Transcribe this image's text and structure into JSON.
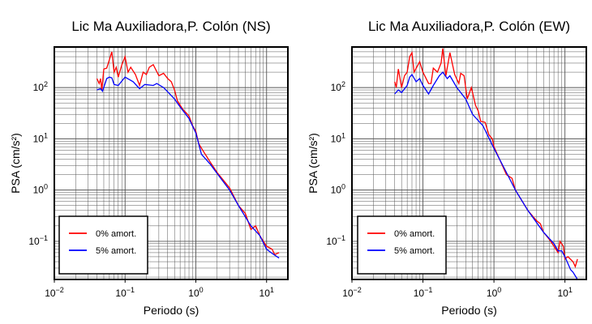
{
  "chart_data": [
    {
      "type": "line",
      "title": "Lic Ma Auxiliadora,P. Colón (NS)",
      "xlabel": "Periodo (s)",
      "ylabel": "PSA (cm/s²)",
      "xscale": "log",
      "yscale": "log",
      "xlim": [
        0.01,
        20
      ],
      "ylim": [
        0.018,
        620
      ],
      "grid": true,
      "legend_position": "bottom-left",
      "xticks": [
        {
          "base": "10",
          "exp": "−2",
          "v": 0.01
        },
        {
          "base": "10",
          "exp": "−1",
          "v": 0.1
        },
        {
          "base": "10",
          "exp": "0",
          "v": 1
        },
        {
          "base": "10",
          "exp": "1",
          "v": 10
        }
      ],
      "yticks": [
        {
          "base": "10",
          "exp": "−1",
          "v": 0.1
        },
        {
          "base": "10",
          "exp": "0",
          "v": 1
        },
        {
          "base": "10",
          "exp": "1",
          "v": 10
        },
        {
          "base": "10",
          "exp": "2",
          "v": 100
        }
      ],
      "series": [
        {
          "name": "0% amort.",
          "color": "#ff0000",
          "x": [
            0.04,
            0.043,
            0.045,
            0.047,
            0.05,
            0.055,
            0.06,
            0.065,
            0.07,
            0.075,
            0.08,
            0.09,
            0.1,
            0.11,
            0.12,
            0.14,
            0.16,
            0.18,
            0.2,
            0.22,
            0.25,
            0.3,
            0.35,
            0.4,
            0.45,
            0.5,
            0.55,
            0.65,
            0.8,
            0.9,
            1.0,
            1.1,
            1.3,
            1.6,
            2,
            3,
            4,
            5,
            6,
            7,
            8,
            9,
            10,
            12,
            13,
            15
          ],
          "y": [
            150,
            120,
            150,
            90,
            230,
            240,
            350,
            500,
            200,
            250,
            160,
            280,
            400,
            200,
            250,
            180,
            110,
            200,
            180,
            250,
            280,
            170,
            190,
            150,
            130,
            90,
            55,
            38,
            28,
            18,
            14,
            8,
            5.5,
            3.5,
            2.2,
            1.1,
            0.5,
            0.35,
            0.17,
            0.2,
            0.13,
            0.1,
            0.08,
            0.07,
            0.055,
            0.06
          ]
        },
        {
          "name": "5% amort.",
          "color": "#0000ff",
          "x": [
            0.04,
            0.045,
            0.048,
            0.055,
            0.06,
            0.065,
            0.07,
            0.08,
            0.1,
            0.13,
            0.16,
            0.19,
            0.25,
            0.28,
            0.35,
            0.5,
            0.6,
            0.8,
            1.0,
            1.2,
            1.6,
            2,
            3,
            4,
            5,
            6,
            8,
            10,
            12,
            15
          ],
          "y": [
            90,
            95,
            85,
            150,
            160,
            155,
            115,
            110,
            160,
            130,
            95,
            115,
            110,
            120,
            100,
            60,
            42,
            25,
            13,
            5,
            3.2,
            2.1,
            1.0,
            0.5,
            0.3,
            0.2,
            0.13,
            0.07,
            0.058,
            0.047
          ]
        }
      ]
    },
    {
      "type": "line",
      "title": "Lic Ma Auxiliadora,P. Colón (EW)",
      "xlabel": "Periodo (s)",
      "ylabel": "PSA (cm/s²)",
      "xscale": "log",
      "yscale": "log",
      "xlim": [
        0.01,
        20
      ],
      "ylim": [
        0.018,
        620
      ],
      "grid": true,
      "legend_position": "bottom-left",
      "xticks": [
        {
          "base": "10",
          "exp": "−2",
          "v": 0.01
        },
        {
          "base": "10",
          "exp": "−1",
          "v": 0.1
        },
        {
          "base": "10",
          "exp": "0",
          "v": 1
        },
        {
          "base": "10",
          "exp": "1",
          "v": 10
        }
      ],
      "yticks": [
        {
          "base": "10",
          "exp": "−1",
          "v": 0.1
        },
        {
          "base": "10",
          "exp": "0",
          "v": 1
        },
        {
          "base": "10",
          "exp": "1",
          "v": 10
        },
        {
          "base": "10",
          "exp": "2",
          "v": 100
        }
      ],
      "series": [
        {
          "name": "0% amort.",
          "color": "#ff0000",
          "x": [
            0.04,
            0.042,
            0.045,
            0.05,
            0.055,
            0.06,
            0.065,
            0.07,
            0.075,
            0.09,
            0.1,
            0.12,
            0.13,
            0.14,
            0.16,
            0.18,
            0.19,
            0.21,
            0.24,
            0.28,
            0.32,
            0.34,
            0.38,
            0.42,
            0.48,
            0.55,
            0.6,
            0.65,
            0.75,
            0.85,
            0.95,
            1.0,
            1.5,
            1.8,
            2,
            3,
            4,
            4.5,
            5,
            6,
            7,
            8,
            8.5,
            9.5,
            10,
            11,
            13,
            14,
            15
          ],
          "y": [
            130,
            100,
            230,
            100,
            170,
            200,
            400,
            480,
            200,
            320,
            200,
            120,
            120,
            240,
            200,
            300,
            580,
            170,
            480,
            180,
            120,
            190,
            170,
            60,
            100,
            45,
            35,
            22,
            21,
            12,
            10,
            7,
            2.0,
            1.7,
            1.0,
            0.4,
            0.25,
            0.22,
            0.15,
            0.11,
            0.08,
            0.06,
            0.1,
            0.08,
            0.045,
            0.05,
            0.04,
            0.032,
            0.045
          ]
        },
        {
          "name": "5% amort.",
          "color": "#0000ff",
          "x": [
            0.04,
            0.045,
            0.05,
            0.06,
            0.065,
            0.07,
            0.08,
            0.09,
            0.1,
            0.12,
            0.14,
            0.17,
            0.19,
            0.22,
            0.24,
            0.3,
            0.4,
            0.5,
            0.7,
            1.0,
            1.5,
            2,
            3,
            5,
            7,
            8,
            9,
            10,
            12,
            13,
            15
          ],
          "y": [
            75,
            90,
            80,
            110,
            160,
            180,
            130,
            150,
            110,
            75,
            110,
            170,
            200,
            150,
            170,
            100,
            60,
            30,
            18,
            6.5,
            2.2,
            1.0,
            0.4,
            0.15,
            0.09,
            0.065,
            0.065,
            0.05,
            0.028,
            0.025,
            0.018
          ]
        }
      ]
    }
  ]
}
